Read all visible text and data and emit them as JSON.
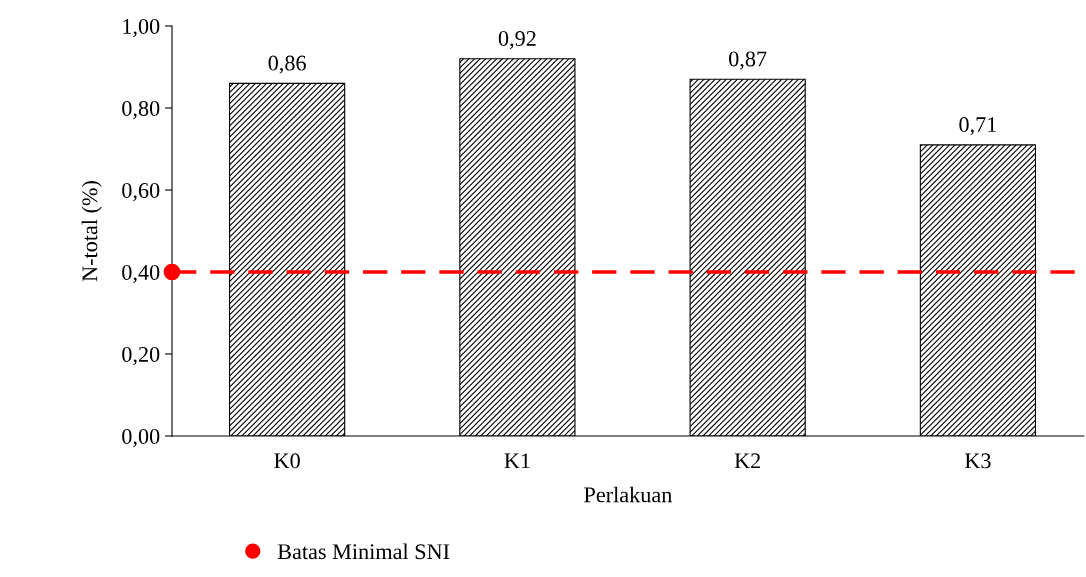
{
  "chart_data": {
    "type": "bar",
    "xlabel": "Perlakuan",
    "ylabel": "N-total (%)",
    "categories": [
      "K0",
      "K1",
      "K2",
      "K3"
    ],
    "values": [
      0.86,
      0.92,
      0.87,
      0.71
    ],
    "value_labels": [
      "0,86",
      "0,92",
      "0,87",
      "0,71"
    ],
    "color": "#000000",
    "ylim": [
      0,
      1
    ],
    "yticks": [
      {
        "value": 0,
        "label": "0,00"
      },
      {
        "value": 0.2,
        "label": "0,20"
      },
      {
        "value": 0.4,
        "label": "0,40"
      },
      {
        "value": 0.6,
        "label": "0,60"
      },
      {
        "value": 0.8,
        "label": "0,80"
      },
      {
        "value": 1,
        "label": "1,00"
      }
    ],
    "ref_lines": [
      {
        "axis": "y",
        "value": 0.4,
        "label": "Batas Minimal SNI",
        "color": "#ff0000",
        "line_style": "dashed"
      }
    ],
    "legend": "bottom left",
    "grid": false
  }
}
